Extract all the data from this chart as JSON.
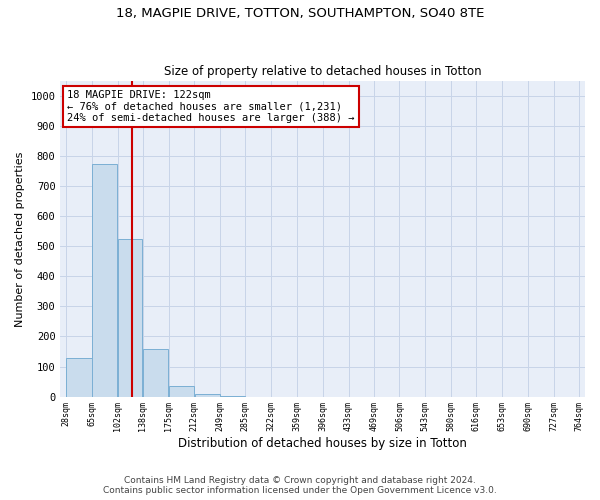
{
  "title1": "18, MAGPIE DRIVE, TOTTON, SOUTHAMPTON, SO40 8TE",
  "title2": "Size of property relative to detached houses in Totton",
  "xlabel": "Distribution of detached houses by size in Totton",
  "ylabel": "Number of detached properties",
  "footer1": "Contains HM Land Registry data © Crown copyright and database right 2024.",
  "footer2": "Contains public sector information licensed under the Open Government Licence v3.0.",
  "bin_edges": [
    28,
    65,
    102,
    138,
    175,
    212,
    249,
    285,
    322,
    359,
    396,
    433,
    469,
    506,
    543,
    580,
    616,
    653,
    690,
    727,
    764
  ],
  "bar_heights": [
    130,
    775,
    525,
    160,
    35,
    10,
    2,
    0,
    0,
    0,
    0,
    0,
    0,
    0,
    0,
    0,
    0,
    0,
    0,
    0
  ],
  "bar_color": "#c9dced",
  "bar_edge_color": "#7bafd4",
  "property_line_x": 122,
  "property_line_color": "#cc0000",
  "annotation_text": "18 MAGPIE DRIVE: 122sqm\n← 76% of detached houses are smaller (1,231)\n24% of semi-detached houses are larger (388) →",
  "annotation_box_color": "#cc0000",
  "ylim": [
    0,
    1050
  ],
  "grid_color": "#c8d4e8",
  "bg_color": "#e8eef8",
  "title1_fontsize": 9.5,
  "title2_fontsize": 8.5,
  "xlabel_fontsize": 8.5,
  "ylabel_fontsize": 8,
  "footer_fontsize": 6.5,
  "annotation_fontsize": 7.5,
  "xtick_fontsize": 6,
  "ytick_fontsize": 7.5
}
